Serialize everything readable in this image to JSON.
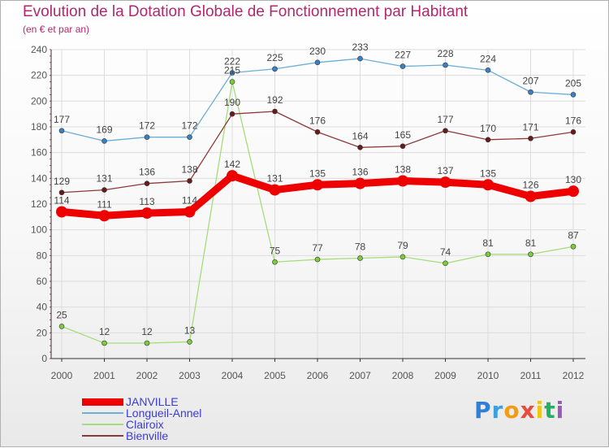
{
  "title": "Evolution de la Dotation Globale de Fonctionnement par Habitant",
  "subtitle": "(en € et par an)",
  "brand": "Proxiti",
  "colors": {
    "title": "#b2276d",
    "axis": "#555555",
    "grid": "#dcdcdc",
    "legend_text": "#3b3bd6"
  },
  "chart_data": {
    "type": "line",
    "title": "Evolution de la Dotation Globale de Fonctionnement par Habitant",
    "subtitle": "(en € et par an)",
    "xlabel": "",
    "ylabel": "",
    "x": [
      "2000",
      "2001",
      "2002",
      "2003",
      "2004",
      "2005",
      "2006",
      "2007",
      "2008",
      "2009",
      "2010",
      "2011",
      "2012"
    ],
    "ylim": [
      0,
      240
    ],
    "yticks": [
      0,
      20,
      40,
      60,
      80,
      100,
      120,
      140,
      160,
      180,
      200,
      220,
      240
    ],
    "grid": true,
    "legend_position": "bottom-left",
    "series": [
      {
        "name": "JANVILLE",
        "color": "#ee0000",
        "marker": "#ee0000",
        "emphasis": true,
        "values": [
          114,
          111,
          113,
          114,
          142,
          131,
          135,
          136,
          138,
          137,
          135,
          126,
          130
        ]
      },
      {
        "name": "Longueil-Annel",
        "color": "#6baed6",
        "marker": "#3b7fc4",
        "emphasis": false,
        "values": [
          177,
          169,
          172,
          172,
          222,
          225,
          230,
          233,
          227,
          228,
          224,
          207,
          205
        ]
      },
      {
        "name": "Clairoix",
        "color": "#a6dc7a",
        "marker": "#7bcc3a",
        "emphasis": false,
        "values": [
          25,
          12,
          12,
          13,
          215,
          75,
          77,
          78,
          79,
          74,
          81,
          81,
          87
        ]
      },
      {
        "name": "Bienville",
        "color": "#8b3a3a",
        "marker": "#6b1a1a",
        "emphasis": false,
        "values": [
          129,
          131,
          136,
          138,
          190,
          192,
          176,
          164,
          165,
          177,
          170,
          171,
          176
        ]
      }
    ]
  }
}
